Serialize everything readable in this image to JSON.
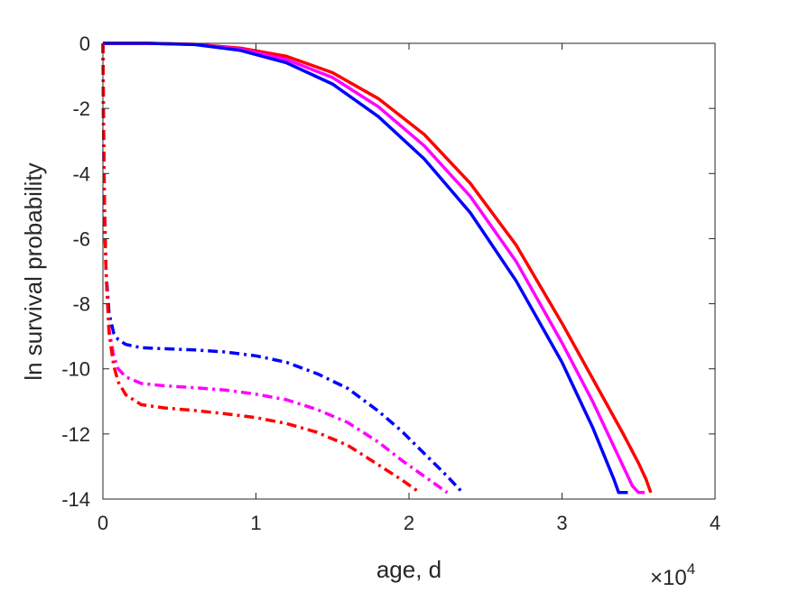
{
  "chart_data": {
    "type": "line",
    "title": "",
    "xlabel": "age, d",
    "ylabel": "ln survival probability",
    "x_exponent_label": "×10",
    "x_exponent_power": "4",
    "xlim": [
      0,
      40000
    ],
    "ylim": [
      -14,
      0
    ],
    "xticks": [
      0,
      10000,
      20000,
      30000,
      40000
    ],
    "xtick_labels": [
      "0",
      "1",
      "2",
      "3",
      "4"
    ],
    "yticks": [
      0,
      -2,
      -4,
      -6,
      -8,
      -10,
      -12,
      -14
    ],
    "ytick_labels": [
      "0",
      "-2",
      "-4",
      "-6",
      "-8",
      "-10",
      "-12",
      "-14"
    ],
    "grid": false,
    "legend": "none",
    "series": [
      {
        "color": "#ff0000",
        "style": "solid",
        "x": [
          0,
          3000,
          6000,
          9000,
          12000,
          15000,
          18000,
          21000,
          24000,
          27000,
          30000,
          32000,
          34000,
          35000,
          35500,
          35800
        ],
        "y": [
          0,
          0,
          -0.03,
          -0.15,
          -0.4,
          -0.9,
          -1.7,
          -2.8,
          -4.3,
          -6.2,
          -8.6,
          -10.3,
          -12.0,
          -12.9,
          -13.4,
          -13.8
        ]
      },
      {
        "color": "#ff00ff",
        "style": "solid",
        "x": [
          0,
          3000,
          6000,
          9000,
          12000,
          15000,
          18000,
          21000,
          24000,
          27000,
          30000,
          32000,
          34000,
          34600,
          35000,
          35400
        ],
        "y": [
          0,
          0,
          -0.03,
          -0.18,
          -0.5,
          -1.05,
          -1.95,
          -3.15,
          -4.7,
          -6.7,
          -9.2,
          -11.0,
          -13.0,
          -13.6,
          -13.8,
          -13.8
        ]
      },
      {
        "color": "#0000ff",
        "style": "solid",
        "x": [
          0,
          3000,
          6000,
          9000,
          12000,
          15000,
          18000,
          21000,
          24000,
          27000,
          30000,
          32000,
          33400,
          33700,
          34300
        ],
        "y": [
          0,
          0,
          -0.04,
          -0.22,
          -0.6,
          -1.25,
          -2.25,
          -3.55,
          -5.2,
          -7.3,
          -9.8,
          -11.8,
          -13.4,
          -13.8,
          -13.8
        ]
      },
      {
        "color": "#0000ff",
        "style": "dashdot",
        "x": [
          0,
          30,
          100,
          200,
          400,
          700,
          1000,
          1500,
          2500,
          4000,
          6000,
          8000,
          10000,
          12000,
          14000,
          16000,
          18000,
          19500,
          21000,
          22500,
          23500
        ],
        "y": [
          0,
          -2,
          -5,
          -7,
          -8.3,
          -8.9,
          -9.1,
          -9.25,
          -9.35,
          -9.38,
          -9.42,
          -9.48,
          -9.6,
          -9.8,
          -10.15,
          -10.6,
          -11.3,
          -11.9,
          -12.6,
          -13.3,
          -13.8
        ]
      },
      {
        "color": "#ff00ff",
        "style": "dashdot",
        "x": [
          0,
          30,
          100,
          200,
          400,
          700,
          1000,
          1500,
          2500,
          4000,
          6000,
          8000,
          10000,
          12000,
          14000,
          16000,
          18000,
          19500,
          21000,
          22500
        ],
        "y": [
          0,
          -2,
          -5,
          -7,
          -8.8,
          -9.6,
          -10.0,
          -10.25,
          -10.45,
          -10.52,
          -10.58,
          -10.65,
          -10.78,
          -10.95,
          -11.25,
          -11.65,
          -12.25,
          -12.8,
          -13.3,
          -13.8
        ]
      },
      {
        "color": "#ff0000",
        "style": "dashdot",
        "x": [
          0,
          30,
          100,
          200,
          400,
          700,
          1000,
          1500,
          2500,
          4000,
          6000,
          8000,
          10000,
          12000,
          14000,
          16000,
          18000,
          19500,
          20700
        ],
        "y": [
          0,
          -2,
          -5,
          -7,
          -8.9,
          -9.9,
          -10.4,
          -10.8,
          -11.1,
          -11.2,
          -11.28,
          -11.38,
          -11.5,
          -11.68,
          -11.95,
          -12.35,
          -12.95,
          -13.4,
          -13.8
        ]
      }
    ]
  }
}
